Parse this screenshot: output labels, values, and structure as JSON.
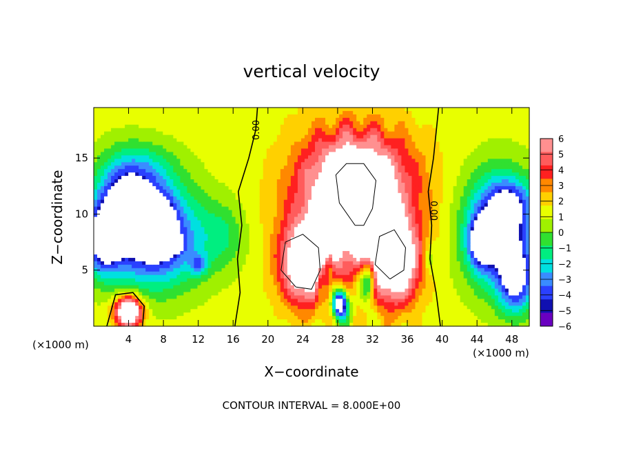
{
  "chart_data": {
    "type": "heatmap",
    "title": "vertical velocity",
    "xlabel": "X−coordinate",
    "ylabel": "Z−coordinate",
    "x_unit_left": "(×1000 m)",
    "x_unit_right": "(×1000 m)",
    "footer": "CONTOUR INTERVAL = 8.000E+00",
    "xlim": [
      0,
      50
    ],
    "ylim": [
      0,
      19.5
    ],
    "x_ticks": [
      4,
      8,
      12,
      16,
      20,
      24,
      28,
      32,
      36,
      40,
      44,
      48
    ],
    "x_tick_labels": [
      "4",
      "8",
      "12",
      "16",
      "20",
      "24",
      "28",
      "32",
      "36",
      "40",
      "44",
      "48"
    ],
    "y_ticks": [
      5,
      10,
      15
    ],
    "y_tick_labels": [
      "5",
      "10",
      "15"
    ],
    "colorbar": {
      "levels": [
        "6",
        "5",
        "4",
        "3",
        "2",
        "1",
        "0",
        "−1",
        "−2",
        "−3",
        "−4",
        "−5",
        "−6"
      ],
      "colors": [
        "#ff9090",
        "#ff5c5c",
        "#ff2020",
        "#ff8800",
        "#ffd000",
        "#e8ff00",
        "#a0f000",
        "#30e030",
        "#00ee80",
        "#00e0e0",
        "#3a8cff",
        "#2a40ff",
        "#1010b0",
        "#6a00c0"
      ]
    },
    "contour_labels": [
      {
        "text": "0.00",
        "x": 19.0,
        "z": 17.5,
        "rotate": -90
      },
      {
        "text": "0.00",
        "x": 38.7,
        "z": 10.3,
        "rotate": 90
      }
    ],
    "field": {
      "background": 0.5,
      "blobs": [
        {
          "x": 30,
          "z": 11.5,
          "sx": 6.5,
          "sz": 5.5,
          "a": 9
        },
        {
          "x": 30,
          "z": 14.0,
          "sx": 5.0,
          "sz": 3.0,
          "a": 2
        },
        {
          "x": 24.5,
          "z": 5.5,
          "sx": 3.0,
          "sz": 3.5,
          "a": 9
        },
        {
          "x": 34.5,
          "z": 5.5,
          "sx": 2.8,
          "sz": 3.5,
          "a": 9
        },
        {
          "x": 30,
          "z": 8.0,
          "sx": 4.0,
          "sz": 2.0,
          "a": 3
        },
        {
          "x": 28.3,
          "z": 2.0,
          "sx": 0.9,
          "sz": 1.4,
          "a": -10
        },
        {
          "x": 31.5,
          "z": 4.0,
          "sx": 0.8,
          "sz": 1.8,
          "a": -6
        },
        {
          "x": 27.0,
          "z": 5.5,
          "sx": 0.6,
          "sz": 1.6,
          "a": -4
        },
        {
          "x": 26.0,
          "z": 4.0,
          "sx": 0.6,
          "sz": 2.0,
          "a": -4
        },
        {
          "x": 7.0,
          "z": 8.0,
          "sx": 5.5,
          "sz": 4.5,
          "a": -8
        },
        {
          "x": 3.5,
          "z": 11.0,
          "sx": 3.5,
          "sz": 4.0,
          "a": -6
        },
        {
          "x": 1.0,
          "z": 7.5,
          "sx": 2.0,
          "sz": 3.0,
          "a": -6
        },
        {
          "x": 7.5,
          "z": 9.0,
          "sx": 1.6,
          "sz": 2.2,
          "a": -5
        },
        {
          "x": 9.0,
          "z": 7.3,
          "sx": 1.2,
          "sz": 0.7,
          "a": -4
        },
        {
          "x": 4.0,
          "z": 1.3,
          "sx": 1.5,
          "sz": 1.3,
          "a": 11
        },
        {
          "x": 12.0,
          "z": 5.5,
          "sx": 1.0,
          "sz": 1.0,
          "a": -3
        },
        {
          "x": 15.0,
          "z": 8.0,
          "sx": 2.5,
          "sz": 3.0,
          "a": -2
        },
        {
          "x": 6.0,
          "z": 14.0,
          "sx": 4.0,
          "sz": 2.5,
          "a": -2
        },
        {
          "x": 46.5,
          "z": 8.5,
          "sx": 4.0,
          "sz": 5.0,
          "a": -8
        },
        {
          "x": 48.5,
          "z": 4.0,
          "sx": 2.0,
          "sz": 3.0,
          "a": -6
        },
        {
          "x": 44.5,
          "z": 7.5,
          "sx": 1.3,
          "sz": 2.0,
          "a": -6
        },
        {
          "x": 48.0,
          "z": 11.0,
          "sx": 2.5,
          "sz": 2.0,
          "a": -3
        },
        {
          "x": 38.5,
          "z": 6.0,
          "sx": 0.8,
          "sz": 1.5,
          "a": -2
        }
      ]
    }
  }
}
